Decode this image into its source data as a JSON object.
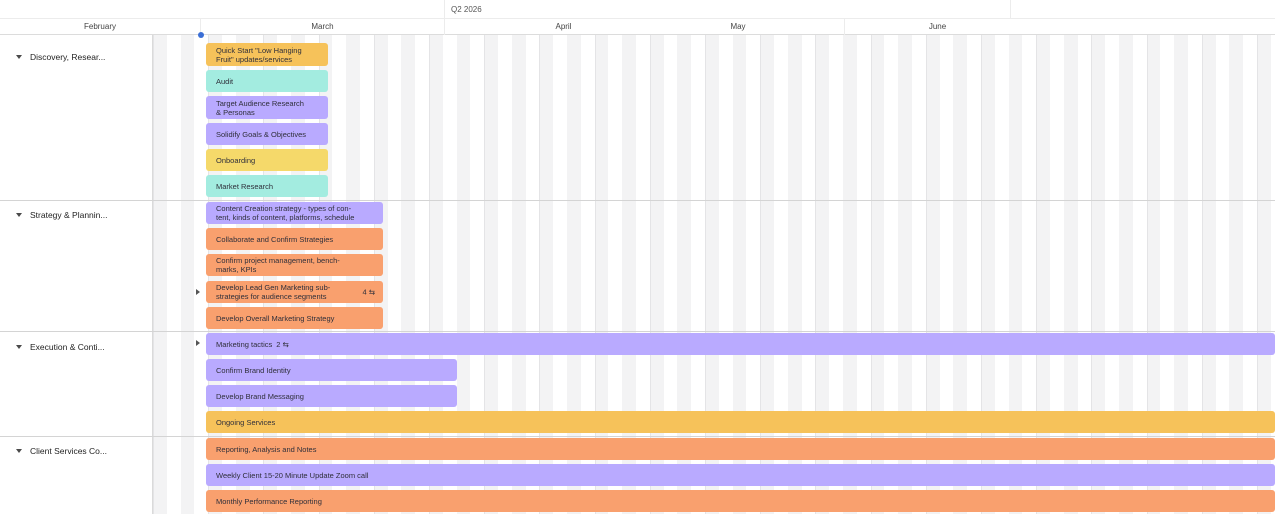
{
  "colors": {
    "orange": "#f9a06e",
    "yellow_orange": "#f6c25a",
    "yellow": "#f5d96a",
    "teal": "#a3ece0",
    "purple": "#b9aaff",
    "grid_shade": "#f3f3f4"
  },
  "header": {
    "quarter": "Q2 2026",
    "months": [
      "February",
      "March",
      "April",
      "May",
      "June"
    ]
  },
  "groups": [
    {
      "label": "Discovery, Resear...",
      "tasks": [
        {
          "label": "Quick Start \"Low Hanging\nFruit\" updates/services",
          "color": "#f6c25a"
        },
        {
          "label": "Audit",
          "color": "#a3ece0"
        },
        {
          "label": "Target Audience Research\n& Personas",
          "color": "#b9aaff"
        },
        {
          "label": "Solidify Goals & Objectives",
          "color": "#b9aaff"
        },
        {
          "label": "Onboarding",
          "color": "#f5d96a"
        },
        {
          "label": "Market Research",
          "color": "#a3ece0"
        }
      ]
    },
    {
      "label": "Strategy & Plannin...",
      "tasks": [
        {
          "label": "Content Creation strategy - types of con-\ntent, kinds of content, platforms, schedule",
          "color": "#b9aaff"
        },
        {
          "label": "Collaborate and Confirm Strategies",
          "color": "#f9a06e"
        },
        {
          "label": "Confirm project management, bench-\nmarks, KPIs",
          "color": "#f9a06e"
        },
        {
          "label": "Develop Lead Gen Marketing sub-\nstrategies for audience segments",
          "subtasks": "4 ⇆",
          "color": "#f9a06e"
        },
        {
          "label": "Develop Overall Marketing Strategy",
          "color": "#f9a06e"
        }
      ]
    },
    {
      "label": "Execution & Conti...",
      "tasks": [
        {
          "label": "Marketing tactics",
          "subtasks": "2 ⇆",
          "color": "#b9aaff"
        },
        {
          "label": "Confirm Brand Identity",
          "color": "#b9aaff"
        },
        {
          "label": "Develop Brand Messaging",
          "color": "#b9aaff"
        },
        {
          "label": "Ongoing Services",
          "color": "#f6c25a"
        }
      ]
    },
    {
      "label": "Client Services Co...",
      "tasks": [
        {
          "label": "Reporting, Analysis and Notes",
          "color": "#f9a06e"
        },
        {
          "label": "Weekly Client 15-20 Minute Update Zoom call",
          "color": "#b9aaff"
        },
        {
          "label": "Monthly Performance Reporting",
          "color": "#f9a06e"
        }
      ]
    }
  ]
}
